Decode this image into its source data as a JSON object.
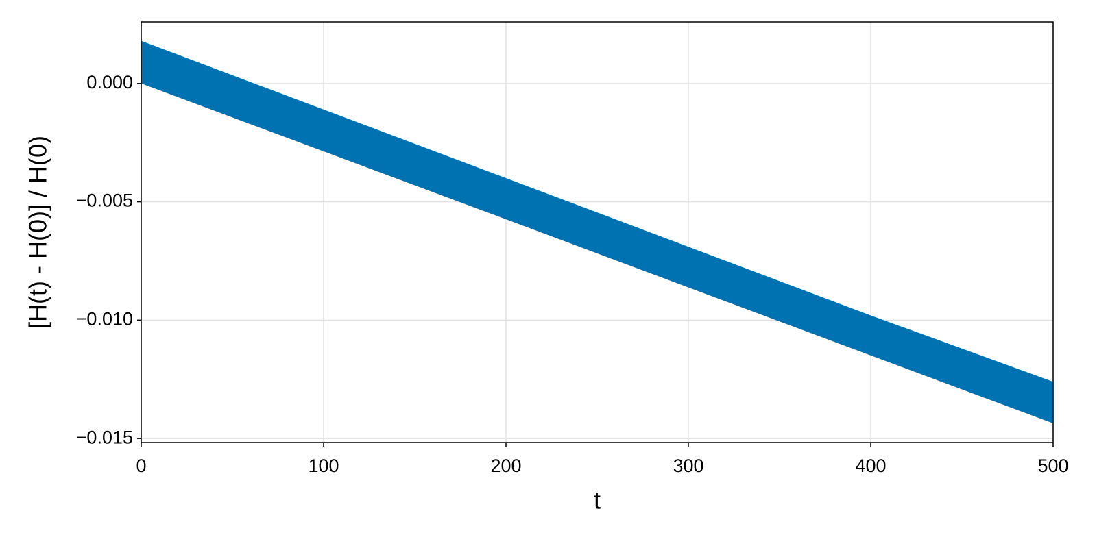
{
  "chart_data": {
    "type": "band",
    "xlabel": "t",
    "ylabel": "[H(t) - H(0)] / H(0)",
    "x": [
      0,
      100,
      200,
      300,
      400,
      500
    ],
    "series": [
      {
        "color": "#0072b2",
        "upper": [
          0.0018,
          -0.0011,
          -0.004,
          -0.0069,
          -0.0098,
          -0.0126
        ],
        "lower": [
          0.0,
          -0.00287,
          -0.00574,
          -0.00862,
          -0.01149,
          -0.01436
        ]
      }
    ],
    "xlim": [
      0,
      500
    ],
    "xticks": [
      0,
      100,
      200,
      300,
      400,
      500
    ],
    "ylim": [
      -0.01517,
      0.0026
    ],
    "yticks": [
      {
        "value": 0,
        "label": "0.000"
      },
      {
        "value": -0.005,
        "label": "−0.005"
      },
      {
        "value": -0.01,
        "label": "−0.010"
      },
      {
        "value": -0.015,
        "label": "−0.015"
      }
    ],
    "grid": true
  }
}
